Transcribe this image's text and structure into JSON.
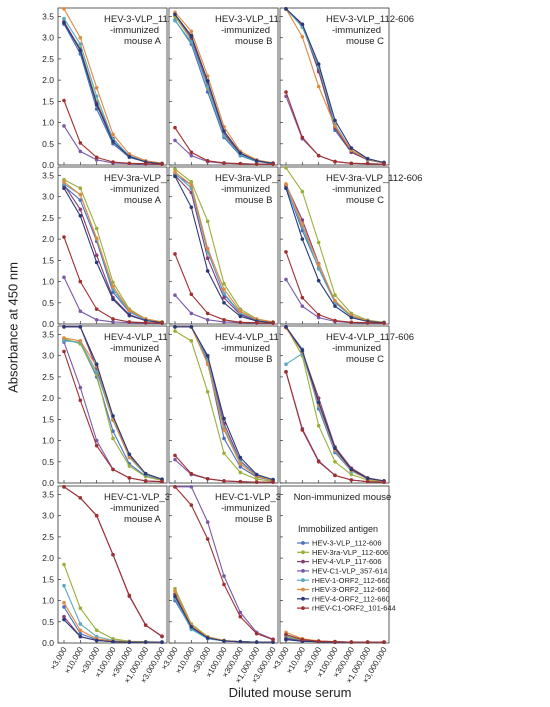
{
  "figure": {
    "ylabel": "Absorbance at 450 nm",
    "xlabel": "Diluted mouse serum"
  },
  "chart_data": {
    "type": "line",
    "x_categories": [
      "×3,000",
      "×10,000",
      "×30,000",
      "×100,000",
      "×300,000",
      "×1,000,000",
      "×3,000,000"
    ],
    "yticks": [
      "0.0",
      "0.5",
      "1.0",
      "1.5",
      "2.0",
      "2.5",
      "3.0",
      "3.5"
    ],
    "ylim": [
      0,
      3.7
    ],
    "legend": {
      "title": "Immobilized antigen",
      "entries": [
        {
          "name": "HEV-3-VLP_112-606",
          "color": "#4a6fbf"
        },
        {
          "name": "HEV-3ra-VLP_112-606",
          "color": "#9aae3a"
        },
        {
          "name": "HEV-4-VLP_117-606",
          "color": "#8a3a70"
        },
        {
          "name": "HEV-C1-VLP_357-614",
          "color": "#7a5aa8"
        },
        {
          "name": "rHEV-1-ORF2_112-660",
          "color": "#5aa8c0"
        },
        {
          "name": "rHEV-3-ORF2_112-660",
          "color": "#e08a40"
        },
        {
          "name": "rHEV-4-ORF2_112-660",
          "color": "#2a3a78"
        },
        {
          "name": "rHEV-C1-ORF2_101-644",
          "color": "#a03030"
        }
      ]
    },
    "panels": [
      {
        "title": [
          "HEV-3-VLP_112-606",
          "-immunized",
          "mouse A"
        ],
        "series": [
          [
            3.32,
            2.62,
            1.32,
            0.5,
            0.18,
            0.07,
            0.03
          ],
          [
            3.35,
            2.75,
            1.5,
            0.6,
            0.2,
            0.08,
            0.03
          ],
          [
            3.38,
            2.72,
            1.45,
            0.62,
            0.2,
            0.07,
            0.03
          ],
          [
            0.92,
            0.32,
            0.12,
            0.05,
            0.03,
            0.02,
            0.02
          ],
          [
            3.45,
            2.85,
            1.62,
            0.6,
            0.22,
            0.08,
            0.04
          ],
          [
            3.68,
            3.0,
            1.82,
            0.72,
            0.26,
            0.1,
            0.04
          ],
          [
            3.35,
            2.7,
            1.42,
            0.55,
            0.2,
            0.07,
            0.03
          ],
          [
            1.52,
            0.52,
            0.18,
            0.07,
            0.04,
            0.03,
            0.02
          ]
        ]
      },
      {
        "title": [
          "HEV-3-VLP_112-606",
          "-immunized",
          "mouse B"
        ],
        "series": [
          [
            3.42,
            2.85,
            1.72,
            0.65,
            0.22,
            0.08,
            0.04
          ],
          [
            3.5,
            2.95,
            1.82,
            0.7,
            0.25,
            0.09,
            0.04
          ],
          [
            3.55,
            3.0,
            1.9,
            0.75,
            0.26,
            0.1,
            0.04
          ],
          [
            0.58,
            0.22,
            0.08,
            0.04,
            0.03,
            0.02,
            0.02
          ],
          [
            3.4,
            2.9,
            1.85,
            0.68,
            0.24,
            0.09,
            0.04
          ],
          [
            3.6,
            3.15,
            2.1,
            0.9,
            0.32,
            0.12,
            0.05
          ],
          [
            3.55,
            3.05,
            1.98,
            0.8,
            0.28,
            0.1,
            0.04
          ],
          [
            0.88,
            0.3,
            0.1,
            0.05,
            0.03,
            0.02,
            0.02
          ]
        ]
      },
      {
        "title": [
          "HEV-3-VLP_112-606",
          "-immunized",
          "mouse C"
        ],
        "series": [
          [
            3.68,
            3.3,
            2.25,
            0.82,
            0.3,
            0.12,
            0.05
          ],
          [
            3.68,
            3.28,
            2.3,
            0.9,
            0.32,
            0.12,
            0.05
          ],
          [
            3.68,
            3.3,
            2.2,
            0.88,
            0.3,
            0.12,
            0.05
          ],
          [
            1.62,
            0.62,
            0.22,
            0.08,
            0.04,
            0.03,
            0.02
          ],
          [
            3.68,
            3.25,
            2.32,
            0.95,
            0.35,
            0.13,
            0.05
          ],
          [
            3.68,
            3.02,
            1.85,
            0.92,
            0.35,
            0.14,
            0.05
          ],
          [
            3.68,
            3.32,
            2.38,
            1.05,
            0.4,
            0.15,
            0.06
          ],
          [
            1.72,
            0.65,
            0.22,
            0.08,
            0.04,
            0.03,
            0.02
          ]
        ]
      },
      {
        "title": [
          "HEV-3ra-VLP_112-606",
          "-immunized",
          "mouse A"
        ],
        "series": [
          [
            3.25,
            2.92,
            1.95,
            0.75,
            0.28,
            0.1,
            0.04
          ],
          [
            3.4,
            3.2,
            2.25,
            0.98,
            0.35,
            0.12,
            0.05
          ],
          [
            3.28,
            2.7,
            1.62,
            0.62,
            0.22,
            0.08,
            0.04
          ],
          [
            1.1,
            0.3,
            0.1,
            0.05,
            0.03,
            0.02,
            0.02
          ],
          [
            3.3,
            3.05,
            2.0,
            0.82,
            0.3,
            0.1,
            0.04
          ],
          [
            3.35,
            3.05,
            2.02,
            0.88,
            0.32,
            0.12,
            0.05
          ],
          [
            3.2,
            2.55,
            1.45,
            0.58,
            0.2,
            0.08,
            0.03
          ],
          [
            2.05,
            1.0,
            0.35,
            0.12,
            0.05,
            0.03,
            0.02
          ]
        ]
      },
      {
        "title": [
          "HEV-3ra-VLP_112-606",
          "-immunized",
          "mouse B"
        ],
        "series": [
          [
            3.52,
            3.28,
            1.72,
            0.7,
            0.25,
            0.09,
            0.04
          ],
          [
            3.65,
            3.35,
            2.42,
            0.95,
            0.35,
            0.12,
            0.05
          ],
          [
            3.5,
            3.1,
            1.55,
            0.62,
            0.22,
            0.08,
            0.04
          ],
          [
            0.68,
            0.25,
            0.1,
            0.05,
            0.03,
            0.02,
            0.02
          ],
          [
            3.55,
            3.2,
            1.7,
            0.72,
            0.26,
            0.1,
            0.04
          ],
          [
            3.58,
            3.28,
            1.78,
            0.82,
            0.3,
            0.11,
            0.05
          ],
          [
            3.48,
            2.75,
            1.25,
            0.5,
            0.18,
            0.07,
            0.03
          ],
          [
            1.65,
            0.7,
            0.25,
            0.1,
            0.04,
            0.03,
            0.02
          ]
        ]
      },
      {
        "title": [
          "HEV-3ra-VLP_112-606",
          "-immunized",
          "mouse C"
        ],
        "series": [
          [
            3.25,
            2.2,
            1.32,
            0.52,
            0.18,
            0.07,
            0.03
          ],
          [
            3.68,
            3.12,
            1.92,
            0.68,
            0.25,
            0.09,
            0.04
          ],
          [
            3.28,
            2.45,
            1.42,
            0.52,
            0.2,
            0.07,
            0.03
          ],
          [
            1.05,
            0.42,
            0.15,
            0.06,
            0.03,
            0.02,
            0.02
          ],
          [
            3.2,
            2.3,
            1.3,
            0.5,
            0.18,
            0.07,
            0.03
          ],
          [
            3.3,
            2.35,
            1.4,
            0.55,
            0.2,
            0.07,
            0.03
          ],
          [
            3.2,
            2.0,
            1.02,
            0.42,
            0.15,
            0.06,
            0.03
          ],
          [
            1.7,
            0.62,
            0.22,
            0.08,
            0.04,
            0.03,
            0.02
          ]
        ]
      },
      {
        "title": [
          "HEV-4-VLP_117-606",
          "-immunized",
          "mouse A"
        ],
        "series": [
          [
            3.38,
            3.3,
            2.5,
            1.22,
            0.45,
            0.16,
            0.06
          ],
          [
            3.4,
            3.28,
            2.55,
            1.05,
            0.4,
            0.15,
            0.06
          ],
          [
            3.68,
            3.68,
            2.7,
            1.5,
            0.65,
            0.2,
            0.08
          ],
          [
            3.32,
            2.25,
            1.0,
            0.32,
            0.12,
            0.05,
            0.03
          ],
          [
            3.35,
            3.32,
            2.62,
            1.48,
            0.6,
            0.2,
            0.08
          ],
          [
            3.42,
            3.35,
            2.75,
            1.5,
            0.62,
            0.22,
            0.08
          ],
          [
            3.68,
            3.68,
            2.8,
            1.58,
            0.68,
            0.22,
            0.09
          ],
          [
            3.1,
            1.95,
            0.88,
            0.32,
            0.12,
            0.05,
            0.03
          ]
        ]
      },
      {
        "title": [
          "HEV-4-VLP_117-606",
          "-immunized",
          "mouse B"
        ],
        "series": [
          [
            3.68,
            3.68,
            2.85,
            1.05,
            0.38,
            0.14,
            0.06
          ],
          [
            3.58,
            3.35,
            2.15,
            0.7,
            0.25,
            0.09,
            0.04
          ],
          [
            3.68,
            3.68,
            2.95,
            1.4,
            0.52,
            0.18,
            0.07
          ],
          [
            0.55,
            0.2,
            0.1,
            0.05,
            0.03,
            0.02,
            0.02
          ],
          [
            3.68,
            3.68,
            2.9,
            1.3,
            0.5,
            0.17,
            0.07
          ],
          [
            3.68,
            3.68,
            2.8,
            1.25,
            0.45,
            0.16,
            0.06
          ],
          [
            3.68,
            3.68,
            3.0,
            1.52,
            0.6,
            0.2,
            0.08
          ],
          [
            0.65,
            0.22,
            0.1,
            0.05,
            0.03,
            0.02,
            0.02
          ]
        ]
      },
      {
        "title": [
          "HEV-4-VLP_117-606",
          "-immunized",
          "mouse C"
        ],
        "series": [
          [
            3.68,
            3.15,
            1.75,
            0.72,
            0.28,
            0.1,
            0.04
          ],
          [
            3.68,
            3.0,
            1.35,
            0.5,
            0.2,
            0.07,
            0.03
          ],
          [
            3.68,
            3.1,
            2.0,
            0.85,
            0.35,
            0.12,
            0.05
          ],
          [
            2.62,
            1.28,
            0.52,
            0.18,
            0.07,
            0.03,
            0.02
          ],
          [
            2.8,
            3.05,
            1.8,
            0.75,
            0.28,
            0.1,
            0.04
          ],
          [
            3.65,
            3.1,
            1.85,
            0.78,
            0.3,
            0.1,
            0.04
          ],
          [
            3.68,
            3.12,
            1.9,
            0.82,
            0.32,
            0.11,
            0.05
          ],
          [
            2.62,
            1.25,
            0.5,
            0.18,
            0.07,
            0.03,
            0.02
          ]
        ]
      },
      {
        "title": [
          "HEV-C1-VLP_357-614",
          "-immunized",
          "mouse A"
        ],
        "series": [
          [
            0.85,
            0.22,
            0.08,
            0.04,
            0.03,
            0.02,
            0.02
          ],
          [
            1.85,
            0.82,
            0.3,
            0.1,
            0.04,
            0.03,
            0.02
          ],
          [
            0.62,
            0.15,
            0.06,
            0.03,
            0.02,
            0.02,
            0.02
          ],
          [
            3.68,
            3.42,
            3.0,
            2.08,
            1.1,
            0.42,
            0.15
          ],
          [
            1.35,
            0.45,
            0.15,
            0.06,
            0.03,
            0.02,
            0.02
          ],
          [
            0.95,
            0.3,
            0.1,
            0.05,
            0.03,
            0.02,
            0.02
          ],
          [
            0.55,
            0.15,
            0.06,
            0.03,
            0.02,
            0.02,
            0.02
          ],
          [
            3.68,
            3.42,
            3.0,
            2.08,
            1.12,
            0.42,
            0.16
          ]
        ]
      },
      {
        "title": [
          "HEV-C1-VLP_357-614",
          "-immunized",
          "mouse B"
        ],
        "series": [
          [
            1.0,
            0.35,
            0.12,
            0.05,
            0.03,
            0.02,
            0.02
          ],
          [
            1.28,
            0.45,
            0.15,
            0.06,
            0.03,
            0.02,
            0.02
          ],
          [
            1.15,
            0.38,
            0.12,
            0.05,
            0.03,
            0.02,
            0.02
          ],
          [
            3.68,
            3.68,
            2.85,
            1.58,
            0.72,
            0.25,
            0.09
          ],
          [
            1.05,
            0.32,
            0.1,
            0.05,
            0.03,
            0.02,
            0.02
          ],
          [
            1.22,
            0.42,
            0.14,
            0.06,
            0.03,
            0.02,
            0.02
          ],
          [
            1.1,
            0.38,
            0.12,
            0.05,
            0.03,
            0.02,
            0.02
          ],
          [
            3.68,
            3.25,
            2.45,
            1.38,
            0.62,
            0.22,
            0.08
          ]
        ]
      },
      {
        "title": [
          "Non-immunized mouse"
        ],
        "series": [
          [
            0.12,
            0.06,
            0.04,
            0.03,
            0.02,
            0.02,
            0.02
          ],
          [
            0.15,
            0.07,
            0.04,
            0.03,
            0.02,
            0.02,
            0.02
          ],
          [
            0.1,
            0.05,
            0.03,
            0.02,
            0.02,
            0.02,
            0.02
          ],
          [
            0.08,
            0.05,
            0.03,
            0.02,
            0.02,
            0.02,
            0.02
          ],
          [
            0.18,
            0.08,
            0.05,
            0.03,
            0.02,
            0.02,
            0.02
          ],
          [
            0.25,
            0.1,
            0.05,
            0.03,
            0.02,
            0.02,
            0.02
          ],
          [
            0.08,
            0.04,
            0.03,
            0.02,
            0.02,
            0.02,
            0.02
          ],
          [
            0.2,
            0.08,
            0.04,
            0.03,
            0.02,
            0.02,
            0.02
          ]
        ]
      }
    ]
  }
}
